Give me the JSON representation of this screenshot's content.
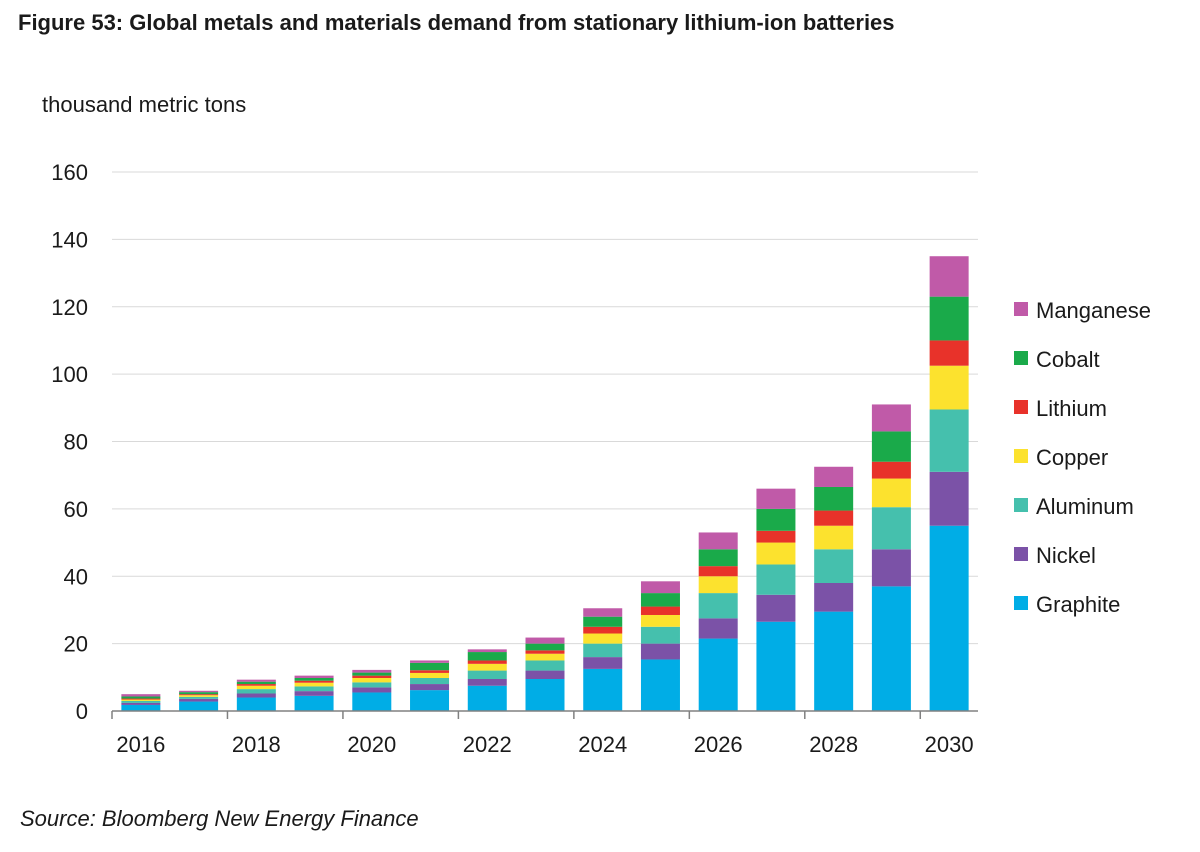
{
  "title": "Figure 53: Global metals and materials demand from stationary lithium-ion batteries",
  "source": "Source: Bloomberg New Energy Finance",
  "chart_data": {
    "type": "bar",
    "stacked": true,
    "title": "Figure 53: Global metals and materials demand from stationary lithium-ion batteries",
    "ylabel": "thousand metric tons",
    "xlabel": "",
    "ylim": [
      0,
      160
    ],
    "yticks": [
      0,
      20,
      40,
      60,
      80,
      100,
      120,
      140,
      160
    ],
    "xtick_labels": [
      "2016",
      "2018",
      "2020",
      "2022",
      "2024",
      "2026",
      "2028",
      "2030"
    ],
    "grid": true,
    "legend_position": "right",
    "categories": [
      "2016",
      "2017",
      "2018",
      "2019",
      "2020",
      "2021",
      "2022",
      "2023",
      "2024",
      "2025",
      "2026",
      "2027",
      "2028",
      "2029",
      "2030"
    ],
    "series": [
      {
        "name": "Graphite",
        "color": "#00ade6",
        "values": [
          1.8,
          2.8,
          4.0,
          4.5,
          5.5,
          6.2,
          7.5,
          9.5,
          12.5,
          15.3,
          21.5,
          26.5,
          29.5,
          37.0,
          55.0
        ]
      },
      {
        "name": "Nickel",
        "color": "#7b52a7",
        "values": [
          0.6,
          0.8,
          1.2,
          1.4,
          1.5,
          1.8,
          2.0,
          2.5,
          3.5,
          4.7,
          6.0,
          8.0,
          8.5,
          11.0,
          16.0
        ]
      },
      {
        "name": "Aluminum",
        "color": "#45c0ad",
        "values": [
          0.6,
          0.6,
          1.3,
          1.4,
          1.5,
          1.8,
          2.5,
          3.0,
          4.0,
          5.0,
          7.5,
          9.0,
          10.0,
          12.5,
          18.5
        ]
      },
      {
        "name": "Copper",
        "color": "#fce22e",
        "values": [
          0.4,
          0.5,
          1.0,
          1.1,
          1.3,
          1.5,
          2.0,
          2.0,
          3.0,
          3.5,
          5.0,
          6.5,
          7.0,
          8.5,
          13.0
        ]
      },
      {
        "name": "Lithium",
        "color": "#e8322a",
        "values": [
          0.3,
          0.3,
          0.5,
          0.6,
          0.7,
          0.8,
          1.0,
          1.0,
          2.0,
          2.5,
          3.0,
          3.5,
          4.5,
          5.0,
          7.5
        ]
      },
      {
        "name": "Cobalt",
        "color": "#1aaa4a",
        "values": [
          0.6,
          0.6,
          0.7,
          0.8,
          0.9,
          2.2,
          2.5,
          2.0,
          3.0,
          4.0,
          5.0,
          6.5,
          7.0,
          9.0,
          13.0
        ]
      },
      {
        "name": "Manganese",
        "color": "#c05aa8",
        "values": [
          0.7,
          0.4,
          0.6,
          0.7,
          0.8,
          0.7,
          0.8,
          1.8,
          2.5,
          3.5,
          5.0,
          6.0,
          6.0,
          8.0,
          12.0
        ]
      }
    ]
  }
}
